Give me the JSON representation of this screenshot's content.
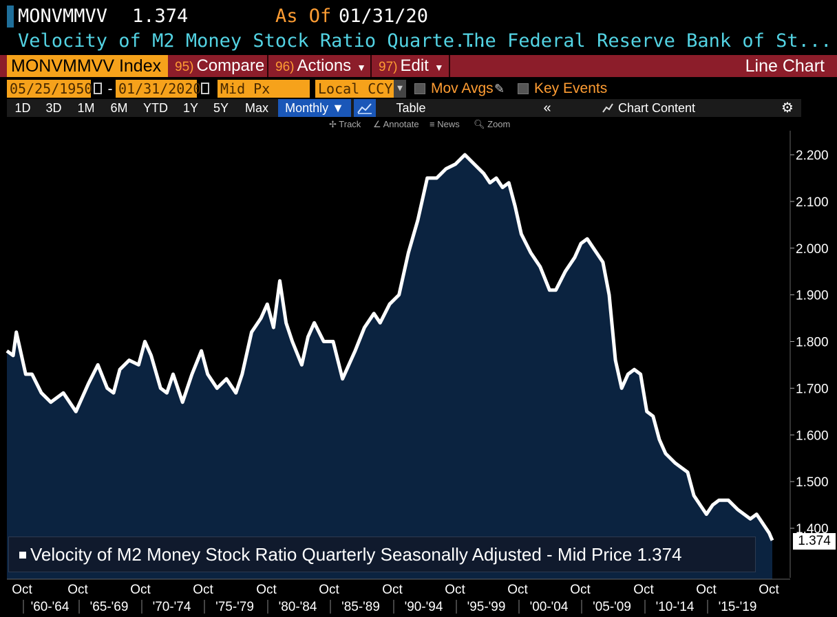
{
  "header": {
    "ticker": "MONVMMVV",
    "last_value": "1.374",
    "as_of_label": "As Of",
    "as_of_date": "01/31/20",
    "series_title": "Velocity of M2 Money Stock Ratio Quarte...",
    "series_source": "The Federal Reserve Bank of St..."
  },
  "command_bar": {
    "security": "MONVMMVV Index",
    "compare_num": "95)",
    "compare_label": "Compare",
    "actions_num": "96)",
    "actions_label": "Actions",
    "edit_num": "97)",
    "edit_label": "Edit",
    "chart_type": "Line Chart"
  },
  "settings": {
    "start_date": "05/25/1950",
    "end_date": "01/31/2020",
    "field": "Mid Px",
    "currency": "Local CCY",
    "mov_avgs": "Mov Avgs",
    "key_events": "Key Events"
  },
  "period_bar": {
    "periods": [
      "1D",
      "3D",
      "1M",
      "6M",
      "YTD",
      "1Y",
      "5Y",
      "Max"
    ],
    "frequency": "Monthly ▼",
    "table": "Table",
    "chart_content": "Chart Content"
  },
  "tools": [
    "Track",
    "Annotate",
    "News",
    "Zoom"
  ],
  "colors": {
    "accent_orange": "#f6a21b",
    "title_cyan": "#53d3e3",
    "command_red": "#8c1d2a",
    "fill_navy": "#0b2340",
    "line_white": "#ffffff"
  },
  "chart_data": {
    "type": "area",
    "ylim": [
      1.34,
      2.26
    ],
    "yticks": [
      "2.200",
      "2.100",
      "2.000",
      "1.900",
      "1.800",
      "1.700",
      "1.600",
      "1.500",
      "1.400"
    ],
    "last_price_tag": "1.374",
    "legend": "Velocity of M2 Money Stock Ratio Quarterly Seasonally Adjusted - Mid Price 1.374",
    "x_month_labels": [
      "Oct",
      "Oct",
      "Oct",
      "Oct",
      "Oct",
      "Oct",
      "Oct",
      "Oct",
      "Oct",
      "Oct",
      "Oct",
      "Oct",
      "Oct"
    ],
    "x_period_labels": [
      "'60-'64",
      "'65-'69",
      "'70-'74",
      "'75-'79",
      "'80-'84",
      "'85-'89",
      "'90-'94",
      "'95-'99",
      "'00-'04",
      "'05-'09",
      "'10-'14",
      "'15-'19"
    ],
    "x": [
      1959.0,
      1959.5,
      1959.75,
      1960.5,
      1961.0,
      1961.75,
      1962.5,
      1963.5,
      1964.5,
      1965.0,
      1965.5,
      1966.25,
      1967.0,
      1967.5,
      1968.0,
      1968.75,
      1969.5,
      1970.0,
      1970.5,
      1971.25,
      1971.75,
      1972.25,
      1973.0,
      1973.75,
      1974.5,
      1975.0,
      1975.75,
      1976.5,
      1977.25,
      1977.75,
      1978.5,
      1979.25,
      1979.75,
      1980.25,
      1980.75,
      1981.25,
      1981.75,
      1982.5,
      1983.0,
      1983.5,
      1984.25,
      1985.0,
      1985.75,
      1986.25,
      1986.75,
      1987.5,
      1988.25,
      1988.75,
      1989.5,
      1990.25,
      1991.0,
      1991.75,
      1992.5,
      1993.25,
      1994.0,
      1994.75,
      1995.5,
      1996.25,
      1997.0,
      1997.5,
      1998.0,
      1998.5,
      1999.0,
      1999.5,
      2000.0,
      2000.75,
      2001.5,
      2002.25,
      2002.75,
      2003.5,
      2004.25,
      2004.75,
      2005.25,
      2005.75,
      2006.5,
      2007.0,
      2007.5,
      2008.0,
      2008.5,
      2009.0,
      2009.5,
      2010.0,
      2010.5,
      2011.0,
      2011.5,
      2012.25,
      2012.75,
      2013.25,
      2013.75,
      2014.25,
      2014.75,
      2015.25,
      2015.75,
      2016.5,
      2017.25,
      2017.75,
      2018.25,
      2018.75,
      2019.25,
      2019.75,
      2020.0
    ],
    "y": [
      1.78,
      1.77,
      1.82,
      1.73,
      1.73,
      1.69,
      1.67,
      1.69,
      1.65,
      1.68,
      1.71,
      1.75,
      1.7,
      1.69,
      1.74,
      1.76,
      1.75,
      1.8,
      1.77,
      1.7,
      1.69,
      1.73,
      1.67,
      1.73,
      1.78,
      1.73,
      1.7,
      1.72,
      1.69,
      1.73,
      1.82,
      1.85,
      1.88,
      1.83,
      1.93,
      1.84,
      1.8,
      1.75,
      1.81,
      1.84,
      1.8,
      1.8,
      1.72,
      1.75,
      1.78,
      1.83,
      1.86,
      1.84,
      1.88,
      1.9,
      1.99,
      2.06,
      2.15,
      2.15,
      2.17,
      2.18,
      2.2,
      2.18,
      2.16,
      2.14,
      2.15,
      2.13,
      2.14,
      2.09,
      2.03,
      1.99,
      1.96,
      1.91,
      1.91,
      1.95,
      1.98,
      2.01,
      2.02,
      2.0,
      1.97,
      1.9,
      1.76,
      1.7,
      1.73,
      1.74,
      1.73,
      1.65,
      1.64,
      1.59,
      1.56,
      1.54,
      1.53,
      1.52,
      1.47,
      1.45,
      1.43,
      1.45,
      1.46,
      1.46,
      1.44,
      1.43,
      1.42,
      1.43,
      1.41,
      1.39,
      1.374
    ]
  }
}
